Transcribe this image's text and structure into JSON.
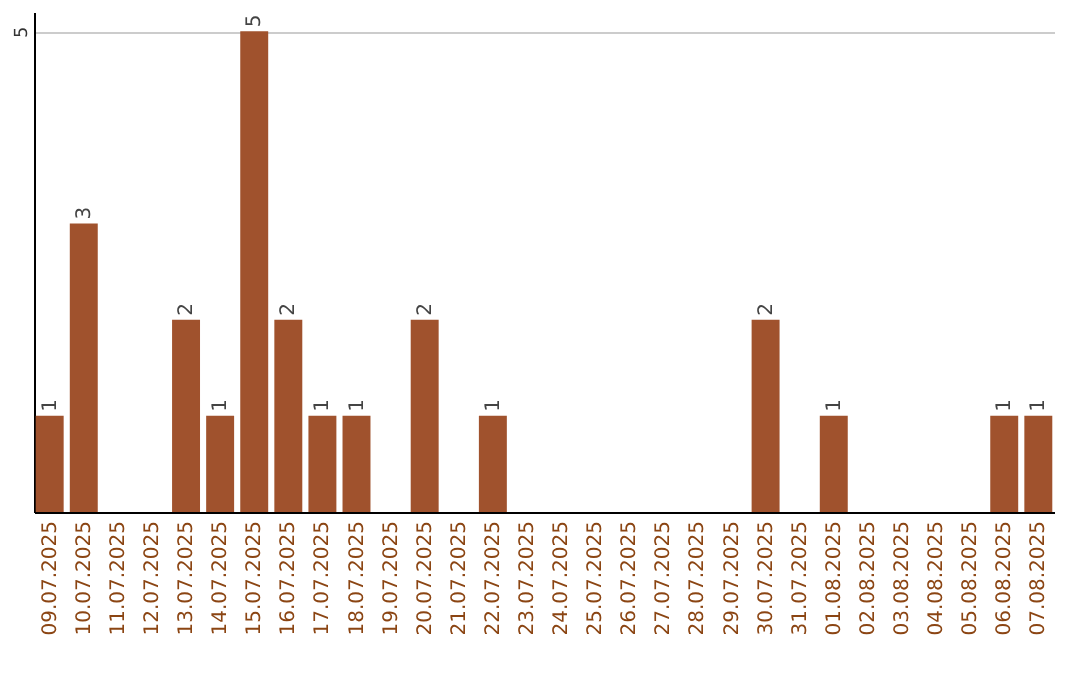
{
  "chart_data": {
    "type": "bar",
    "categories": [
      "09.07.2025",
      "10.07.2025",
      "11.07.2025",
      "12.07.2025",
      "13.07.2025",
      "14.07.2025",
      "15.07.2025",
      "16.07.2025",
      "17.07.2025",
      "18.07.2025",
      "19.07.2025",
      "20.07.2025",
      "21.07.2025",
      "22.07.2025",
      "23.07.2025",
      "24.07.2025",
      "25.07.2025",
      "26.07.2025",
      "27.07.2025",
      "28.07.2025",
      "29.07.2025",
      "30.07.2025",
      "31.07.2025",
      "01.08.2025",
      "02.08.2025",
      "03.08.2025",
      "04.08.2025",
      "05.08.2025",
      "06.08.2025",
      "07.08.2025"
    ],
    "values": [
      1,
      3,
      0,
      0,
      2,
      1,
      5,
      2,
      1,
      1,
      0,
      2,
      0,
      1,
      0,
      0,
      0,
      0,
      0,
      0,
      0,
      2,
      0,
      1,
      0,
      0,
      0,
      0,
      1,
      1
    ],
    "value_labels": [
      "1",
      "3",
      null,
      null,
      "2",
      "1",
      "5",
      "2",
      "1",
      "1",
      null,
      "2",
      null,
      "1",
      null,
      null,
      null,
      null,
      null,
      null,
      null,
      "2",
      null,
      "1",
      null,
      null,
      null,
      null,
      "1",
      "1"
    ],
    "color": "#a0522d",
    "ylim": [
      0,
      5.2
    ],
    "yticks": [
      5
    ],
    "grid": "y"
  }
}
